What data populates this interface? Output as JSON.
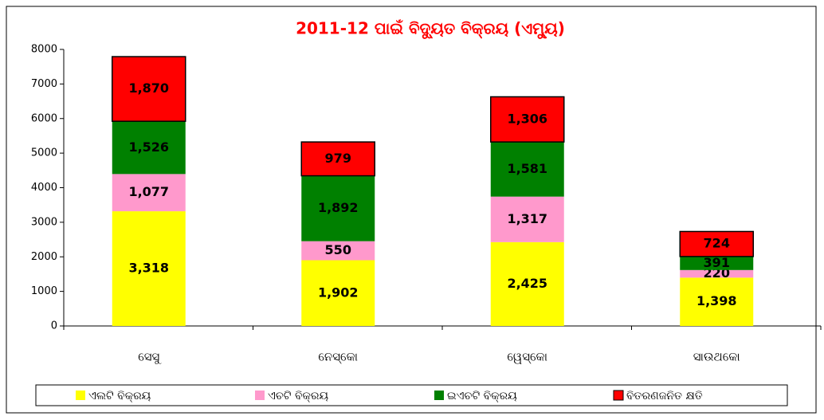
{
  "chart_data": {
    "type": "stacked_bar",
    "title": "2011-12 ପାଇଁ ବିଦ୍ୟୁତ ବିକ୍ରୟ (ଏମ୍ୟୁ)",
    "categories": [
      "ସେସୁ",
      "ନେସ୍କୋ",
      "ୱେସ୍କୋ",
      "ସାଉଥକୋ"
    ],
    "series": [
      {
        "name": "ଏଲଟି ବିକ୍ରୟ",
        "color": "#ffff00",
        "values": [
          3318,
          1902,
          2425,
          1398
        ],
        "value_labels": [
          "3,318",
          "1,902",
          "2,425",
          "1,398"
        ]
      },
      {
        "name": "ଏଚଟି ବିକ୍ରୟ",
        "color": "#ff99cc",
        "values": [
          1077,
          550,
          1317,
          220
        ],
        "value_labels": [
          "1,077",
          "550",
          "1,317",
          "220"
        ]
      },
      {
        "name": "ଇଏଚଟି ବିକ୍ରୟ",
        "color": "#008000",
        "values": [
          1526,
          1892,
          1581,
          391
        ],
        "value_labels": [
          "1,526",
          "1,892",
          "1,581",
          "391"
        ]
      },
      {
        "name": "ବିତରଣଜନିତ କ୍ଷତି",
        "color": "#ff0000",
        "values": [
          1870,
          979,
          1306,
          724
        ],
        "value_labels": [
          "1,870",
          "979",
          "1,306",
          "724"
        ]
      }
    ],
    "ylim": [
      0,
      8000
    ],
    "yticks": [
      0,
      1000,
      2000,
      3000,
      4000,
      5000,
      6000,
      7000,
      8000
    ],
    "legend": "bottom"
  }
}
